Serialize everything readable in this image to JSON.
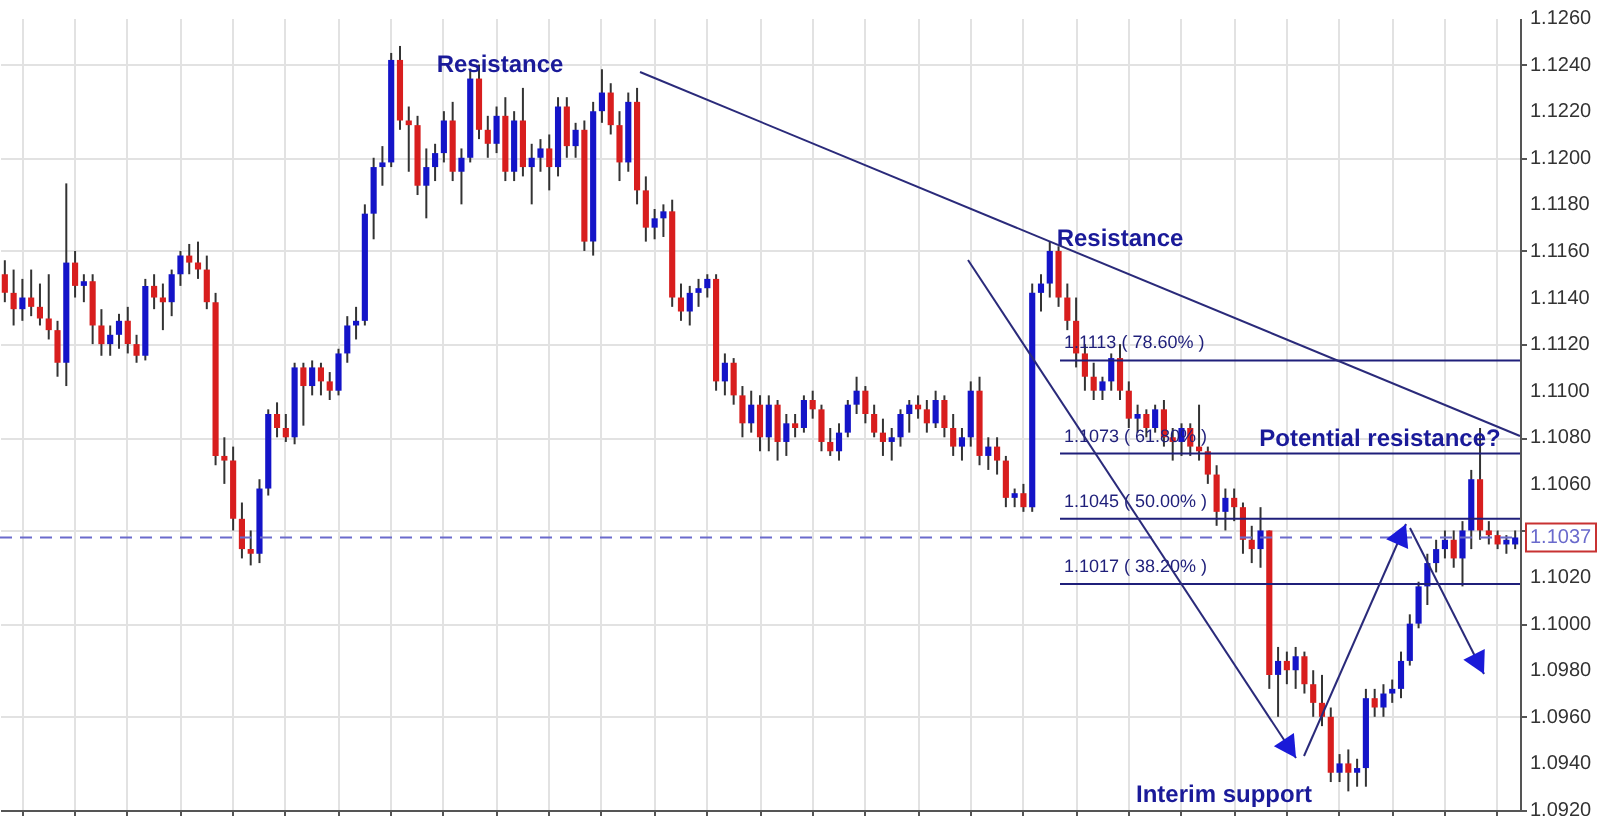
{
  "chart_data": {
    "type": "candlestick",
    "categories": [
      null,
      null,
      null,
      null,
      null,
      null,
      null,
      null,
      null,
      null,
      null,
      null,
      null,
      null,
      null,
      null,
      null,
      null,
      null,
      null,
      null,
      null,
      null,
      null,
      null,
      null,
      null,
      null,
      null,
      null,
      null,
      null,
      null,
      null,
      null,
      null,
      null,
      null,
      null,
      null,
      null,
      null,
      null,
      null,
      null,
      null,
      null,
      null,
      null,
      null,
      null,
      null,
      null,
      null,
      null,
      null,
      null,
      null,
      null,
      null,
      null,
      null,
      null,
      null,
      null,
      null,
      null,
      null,
      null,
      null,
      null,
      null,
      null,
      null,
      null,
      null,
      null,
      null,
      null,
      null,
      null,
      null,
      null,
      null,
      null,
      null,
      null,
      null,
      null,
      null,
      null,
      null,
      null,
      null,
      null,
      null,
      null,
      null,
      null,
      null,
      null,
      null,
      null,
      null,
      null,
      null,
      null,
      null,
      null,
      null,
      null,
      null,
      null,
      null,
      null,
      null,
      null,
      null,
      null,
      null,
      null,
      null,
      null,
      null,
      null,
      null,
      null,
      null,
      null,
      null,
      null,
      null,
      null,
      null,
      null,
      null,
      null,
      null,
      null,
      null,
      null,
      null,
      null,
      null,
      null,
      null,
      null,
      null,
      null,
      null,
      null,
      null,
      null,
      null,
      null,
      null,
      null,
      null,
      null,
      null,
      null,
      null,
      null,
      null,
      null,
      null,
      null,
      null,
      null,
      null,
      null,
      null,
      null
    ],
    "ohlc": [
      [
        1.115,
        1.1156,
        1.1138,
        1.1142
      ],
      [
        1.1142,
        1.1152,
        1.1128,
        1.1135
      ],
      [
        1.1135,
        1.1148,
        1.113,
        1.114
      ],
      [
        1.114,
        1.1152,
        1.1132,
        1.1136
      ],
      [
        1.1136,
        1.1146,
        1.1128,
        1.1131
      ],
      [
        1.1131,
        1.115,
        1.1122,
        1.1126
      ],
      [
        1.1126,
        1.113,
        1.1106,
        1.1112
      ],
      [
        1.1112,
        1.1189,
        1.1102,
        1.1155
      ],
      [
        1.1155,
        1.116,
        1.114,
        1.1145
      ],
      [
        1.1145,
        1.115,
        1.1138,
        1.1147
      ],
      [
        1.1147,
        1.115,
        1.112,
        1.1128
      ],
      [
        1.1128,
        1.1135,
        1.1115,
        1.112
      ],
      [
        1.112,
        1.1128,
        1.1115,
        1.1124
      ],
      [
        1.1124,
        1.1133,
        1.1118,
        1.113
      ],
      [
        1.113,
        1.1136,
        1.1116,
        1.112
      ],
      [
        1.112,
        1.1124,
        1.1112,
        1.1115
      ],
      [
        1.1115,
        1.1148,
        1.1113,
        1.1145
      ],
      [
        1.1145,
        1.115,
        1.1135,
        1.114
      ],
      [
        1.114,
        1.1146,
        1.1126,
        1.1138
      ],
      [
        1.1138,
        1.1152,
        1.1132,
        1.115
      ],
      [
        1.115,
        1.116,
        1.1145,
        1.1158
      ],
      [
        1.1158,
        1.1163,
        1.115,
        1.1155
      ],
      [
        1.1155,
        1.1164,
        1.1148,
        1.1152
      ],
      [
        1.1152,
        1.1158,
        1.1135,
        1.1138
      ],
      [
        1.1138,
        1.1142,
        1.1068,
        1.1072
      ],
      [
        1.1072,
        1.108,
        1.106,
        1.107
      ],
      [
        1.107,
        1.1076,
        1.104,
        1.1045
      ],
      [
        1.1045,
        1.1052,
        1.1028,
        1.1032
      ],
      [
        1.1032,
        1.104,
        1.1025,
        1.103
      ],
      [
        1.103,
        1.1062,
        1.1026,
        1.1058
      ],
      [
        1.1058,
        1.1092,
        1.1055,
        1.109
      ],
      [
        1.109,
        1.1095,
        1.108,
        1.1084
      ],
      [
        1.1084,
        1.109,
        1.1078,
        1.108
      ],
      [
        1.108,
        1.1112,
        1.1077,
        1.111
      ],
      [
        1.111,
        1.1112,
        1.1085,
        1.1102
      ],
      [
        1.1102,
        1.1113,
        1.1098,
        1.111
      ],
      [
        1.111,
        1.1112,
        1.1098,
        1.1104
      ],
      [
        1.1104,
        1.1108,
        1.1096,
        1.11
      ],
      [
        1.11,
        1.1118,
        1.1098,
        1.1116
      ],
      [
        1.1116,
        1.1132,
        1.1112,
        1.1128
      ],
      [
        1.1128,
        1.1136,
        1.1122,
        1.113
      ],
      [
        1.113,
        1.118,
        1.1128,
        1.1176
      ],
      [
        1.1176,
        1.12,
        1.1165,
        1.1196
      ],
      [
        1.1196,
        1.1205,
        1.1188,
        1.1198
      ],
      [
        1.1198,
        1.1245,
        1.1196,
        1.1242
      ],
      [
        1.1242,
        1.1248,
        1.1212,
        1.1216
      ],
      [
        1.1216,
        1.1222,
        1.1194,
        1.1214
      ],
      [
        1.1214,
        1.1218,
        1.1184,
        1.1188
      ],
      [
        1.1188,
        1.1204,
        1.1174,
        1.1196
      ],
      [
        1.1196,
        1.1206,
        1.119,
        1.1202
      ],
      [
        1.1202,
        1.122,
        1.1198,
        1.1216
      ],
      [
        1.1216,
        1.1224,
        1.119,
        1.1194
      ],
      [
        1.1194,
        1.1204,
        1.118,
        1.12
      ],
      [
        1.12,
        1.1238,
        1.1198,
        1.1234
      ],
      [
        1.1234,
        1.124,
        1.1208,
        1.1212
      ],
      [
        1.1212,
        1.1218,
        1.12,
        1.1206
      ],
      [
        1.1206,
        1.1222,
        1.1202,
        1.1218
      ],
      [
        1.1218,
        1.1226,
        1.119,
        1.1194
      ],
      [
        1.1194,
        1.122,
        1.119,
        1.1216
      ],
      [
        1.1216,
        1.123,
        1.1192,
        1.1196
      ],
      [
        1.1196,
        1.1206,
        1.118,
        1.12
      ],
      [
        1.12,
        1.1208,
        1.1194,
        1.1204
      ],
      [
        1.1204,
        1.121,
        1.1186,
        1.1196
      ],
      [
        1.1196,
        1.1226,
        1.1192,
        1.1222
      ],
      [
        1.1222,
        1.1226,
        1.12,
        1.1205
      ],
      [
        1.1205,
        1.1215,
        1.12,
        1.1212
      ],
      [
        1.1212,
        1.1216,
        1.116,
        1.1164
      ],
      [
        1.1164,
        1.1224,
        1.1158,
        1.122
      ],
      [
        1.122,
        1.1238,
        1.1215,
        1.1228
      ],
      [
        1.1228,
        1.1232,
        1.121,
        1.1214
      ],
      [
        1.1214,
        1.122,
        1.119,
        1.1198
      ],
      [
        1.1198,
        1.1228,
        1.1194,
        1.1224
      ],
      [
        1.1224,
        1.123,
        1.118,
        1.1186
      ],
      [
        1.1186,
        1.1192,
        1.1164,
        1.117
      ],
      [
        1.117,
        1.1178,
        1.1165,
        1.1174
      ],
      [
        1.1174,
        1.118,
        1.1166,
        1.1177
      ],
      [
        1.1177,
        1.1182,
        1.1136,
        1.114
      ],
      [
        1.114,
        1.1146,
        1.113,
        1.1134
      ],
      [
        1.1134,
        1.1145,
        1.1128,
        1.1142
      ],
      [
        1.1142,
        1.1148,
        1.1136,
        1.1144
      ],
      [
        1.1144,
        1.115,
        1.114,
        1.1148
      ],
      [
        1.1148,
        1.115,
        1.11,
        1.1104
      ],
      [
        1.1104,
        1.1116,
        1.1098,
        1.1112
      ],
      [
        1.1112,
        1.1114,
        1.1094,
        1.1098
      ],
      [
        1.1098,
        1.1102,
        1.108,
        1.1086
      ],
      [
        1.1086,
        1.11,
        1.1082,
        1.1094
      ],
      [
        1.1094,
        1.1098,
        1.1074,
        1.108
      ],
      [
        1.108,
        1.1098,
        1.1074,
        1.1094
      ],
      [
        1.1094,
        1.1096,
        1.107,
        1.1078
      ],
      [
        1.1078,
        1.109,
        1.1072,
        1.1086
      ],
      [
        1.1086,
        1.109,
        1.108,
        1.1084
      ],
      [
        1.1084,
        1.1098,
        1.1082,
        1.1096
      ],
      [
        1.1096,
        1.11,
        1.1088,
        1.1092
      ],
      [
        1.1092,
        1.1094,
        1.1074,
        1.1078
      ],
      [
        1.1078,
        1.1084,
        1.1072,
        1.1074
      ],
      [
        1.1074,
        1.1086,
        1.107,
        1.1082
      ],
      [
        1.1082,
        1.1096,
        1.108,
        1.1094
      ],
      [
        1.1094,
        1.1106,
        1.109,
        1.11
      ],
      [
        1.11,
        1.1102,
        1.1086,
        1.109
      ],
      [
        1.109,
        1.1094,
        1.108,
        1.1082
      ],
      [
        1.1082,
        1.1088,
        1.1072,
        1.1078
      ],
      [
        1.1078,
        1.1084,
        1.107,
        1.108
      ],
      [
        1.108,
        1.1092,
        1.1076,
        1.109
      ],
      [
        1.109,
        1.1096,
        1.1082,
        1.1094
      ],
      [
        1.1094,
        1.1098,
        1.1088,
        1.1092
      ],
      [
        1.1092,
        1.1096,
        1.1082,
        1.1086
      ],
      [
        1.1086,
        1.11,
        1.1084,
        1.1096
      ],
      [
        1.1096,
        1.1098,
        1.108,
        1.1084
      ],
      [
        1.1084,
        1.109,
        1.1072,
        1.1076
      ],
      [
        1.1076,
        1.1084,
        1.107,
        1.108
      ],
      [
        1.108,
        1.1104,
        1.1076,
        1.11
      ],
      [
        1.11,
        1.1106,
        1.1068,
        1.1072
      ],
      [
        1.1072,
        1.108,
        1.1066,
        1.1076
      ],
      [
        1.1076,
        1.108,
        1.1064,
        1.107
      ],
      [
        1.107,
        1.1072,
        1.105,
        1.1054
      ],
      [
        1.1054,
        1.1058,
        1.105,
        1.1056
      ],
      [
        1.1056,
        1.106,
        1.1048,
        1.105
      ],
      [
        1.105,
        1.1146,
        1.1048,
        1.1142
      ],
      [
        1.1142,
        1.115,
        1.1134,
        1.1146
      ],
      [
        1.1146,
        1.1164,
        1.114,
        1.116
      ],
      [
        1.116,
        1.1162,
        1.1136,
        1.114
      ],
      [
        1.114,
        1.1146,
        1.1126,
        1.113
      ],
      [
        1.113,
        1.114,
        1.111,
        1.1116
      ],
      [
        1.1116,
        1.112,
        1.11,
        1.1106
      ],
      [
        1.1106,
        1.1112,
        1.1096,
        1.11
      ],
      [
        1.11,
        1.1106,
        1.1096,
        1.1104
      ],
      [
        1.1104,
        1.1116,
        1.11,
        1.1114
      ],
      [
        1.1114,
        1.112,
        1.1096,
        1.11
      ],
      [
        1.11,
        1.1104,
        1.1084,
        1.1088
      ],
      [
        1.1088,
        1.1094,
        1.1082,
        1.109
      ],
      [
        1.109,
        1.1092,
        1.108,
        1.1084
      ],
      [
        1.1084,
        1.1094,
        1.1082,
        1.1092
      ],
      [
        1.1092,
        1.1096,
        1.1076,
        1.108
      ],
      [
        1.108,
        1.1084,
        1.107,
        1.1078
      ],
      [
        1.1078,
        1.1086,
        1.1072,
        1.1084
      ],
      [
        1.1084,
        1.1086,
        1.1072,
        1.1076
      ],
      [
        1.1076,
        1.1094,
        1.107,
        1.1074
      ],
      [
        1.1074,
        1.1076,
        1.106,
        1.1064
      ],
      [
        1.1064,
        1.1068,
        1.1042,
        1.1048
      ],
      [
        1.1048,
        1.1058,
        1.104,
        1.1054
      ],
      [
        1.1054,
        1.1058,
        1.1044,
        1.105
      ],
      [
        1.105,
        1.1052,
        1.103,
        1.1036
      ],
      [
        1.1036,
        1.1042,
        1.1026,
        1.1032
      ],
      [
        1.1032,
        1.105,
        1.1024,
        1.104
      ],
      [
        1.104,
        1.104,
        1.0972,
        1.0978
      ],
      [
        1.0978,
        1.099,
        1.096,
        1.0984
      ],
      [
        1.0984,
        1.0988,
        1.0974,
        1.098
      ],
      [
        1.098,
        1.099,
        1.0972,
        1.0986
      ],
      [
        1.0986,
        1.0988,
        1.097,
        1.0974
      ],
      [
        1.0974,
        1.098,
        1.096,
        1.0966
      ],
      [
        1.0966,
        1.0978,
        1.0956,
        1.096
      ],
      [
        1.096,
        1.0964,
        1.0932,
        1.0936
      ],
      [
        1.0936,
        1.0944,
        1.0932,
        1.094
      ],
      [
        1.094,
        1.0946,
        1.0928,
        1.0936
      ],
      [
        1.0936,
        1.0942,
        1.093,
        1.0938
      ],
      [
        1.0938,
        1.0972,
        1.093,
        1.0968
      ],
      [
        1.0968,
        1.0972,
        1.096,
        1.0964
      ],
      [
        1.0964,
        1.0974,
        1.096,
        1.097
      ],
      [
        1.097,
        1.0976,
        1.0966,
        1.0972
      ],
      [
        1.0972,
        1.0988,
        1.0968,
        1.0984
      ],
      [
        1.0984,
        1.1004,
        1.0982,
        1.1
      ],
      [
        1.1,
        1.1018,
        1.0998,
        1.1016
      ],
      [
        1.1016,
        1.103,
        1.1008,
        1.1026
      ],
      [
        1.1026,
        1.1036,
        1.1022,
        1.1032
      ],
      [
        1.1032,
        1.104,
        1.1028,
        1.1036
      ],
      [
        1.1036,
        1.104,
        1.1024,
        1.1028
      ],
      [
        1.1028,
        1.1044,
        1.1016,
        1.104
      ],
      [
        1.104,
        1.1066,
        1.1032,
        1.1062
      ],
      [
        1.1062,
        1.1084,
        1.1036,
        1.104
      ],
      [
        1.104,
        1.1044,
        1.1034,
        1.1038
      ],
      [
        1.1038,
        1.104,
        1.1032,
        1.1034
      ],
      [
        1.1034,
        1.1038,
        1.103,
        1.1036
      ],
      [
        1.1034,
        1.104,
        1.1032,
        1.1037
      ]
    ],
    "ylim": [
      1.092,
      1.126
    ],
    "yticks": [
      {
        "value": 1.092,
        "label": "1.0920"
      },
      {
        "value": 1.094,
        "label": "1.0940"
      },
      {
        "value": 1.096,
        "label": "1.0960"
      },
      {
        "value": 1.098,
        "label": "1.0980"
      },
      {
        "value": 1.1,
        "label": "1.1000"
      },
      {
        "value": 1.102,
        "label": "1.1020"
      },
      {
        "value": 1.104,
        "label": null
      },
      {
        "value": 1.106,
        "label": "1.1060"
      },
      {
        "value": 1.108,
        "label": "1.1080"
      },
      {
        "value": 1.11,
        "label": "1.1100"
      },
      {
        "value": 1.112,
        "label": "1.1120"
      },
      {
        "value": 1.114,
        "label": "1.1140"
      },
      {
        "value": 1.116,
        "label": "1.1160"
      },
      {
        "value": 1.118,
        "label": "1.1180"
      },
      {
        "value": 1.12,
        "label": "1.1200"
      },
      {
        "value": 1.122,
        "label": "1.1220"
      },
      {
        "value": 1.124,
        "label": "1.1240"
      },
      {
        "value": 1.126,
        "label": "1.1260"
      }
    ],
    "ref_lines": [
      {
        "axis": "y",
        "value": 1.1113,
        "label": "1.1113 ( 78.60% )",
        "color": "#1f1f7a",
        "line_style": "solid"
      },
      {
        "axis": "y",
        "value": 1.1073,
        "label": "1.1073 ( 61.80% )",
        "color": "#1f1f7a",
        "line_style": "solid"
      },
      {
        "axis": "y",
        "value": 1.1045,
        "label": "1.1045 ( 50.00% )",
        "color": "#1f1f7a",
        "line_style": "solid"
      },
      {
        "axis": "y",
        "value": 1.1017,
        "label": "1.1017 ( 38.20% )",
        "color": "#1f1f7a",
        "line_style": "solid"
      },
      {
        "axis": "y",
        "value": 1.1037,
        "label": "1.1037",
        "color": "#6a6acc",
        "line_style": "dashed"
      }
    ],
    "annotations": [
      "Resistance",
      "Resistance",
      "Potential resistance?",
      "Interim support"
    ],
    "grid": true,
    "tick_labels": "y"
  }
}
